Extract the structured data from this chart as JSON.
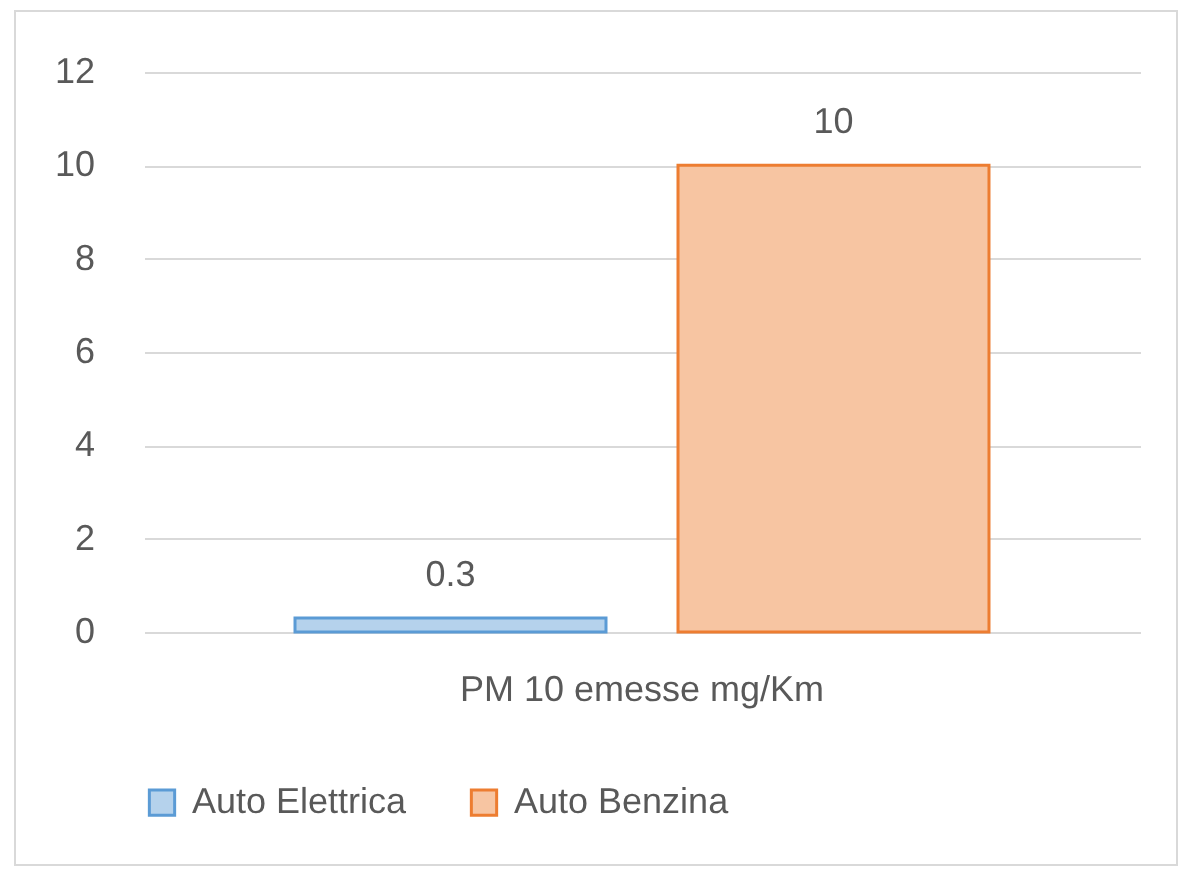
{
  "chart_data": {
    "type": "bar",
    "categories": [
      "PM 10 emesse mg/Km"
    ],
    "series": [
      {
        "name": "Auto Elettrica",
        "color": "#5b9bd5",
        "values": [
          0.3
        ]
      },
      {
        "name": "Auto Benzina",
        "color": "#ed7d31",
        "values": [
          10
        ]
      }
    ],
    "ylim": [
      0,
      12
    ],
    "yticks": [
      0,
      2,
      4,
      6,
      8,
      10,
      12
    ],
    "grid": true,
    "legend": "bottom",
    "data_labels": true
  }
}
